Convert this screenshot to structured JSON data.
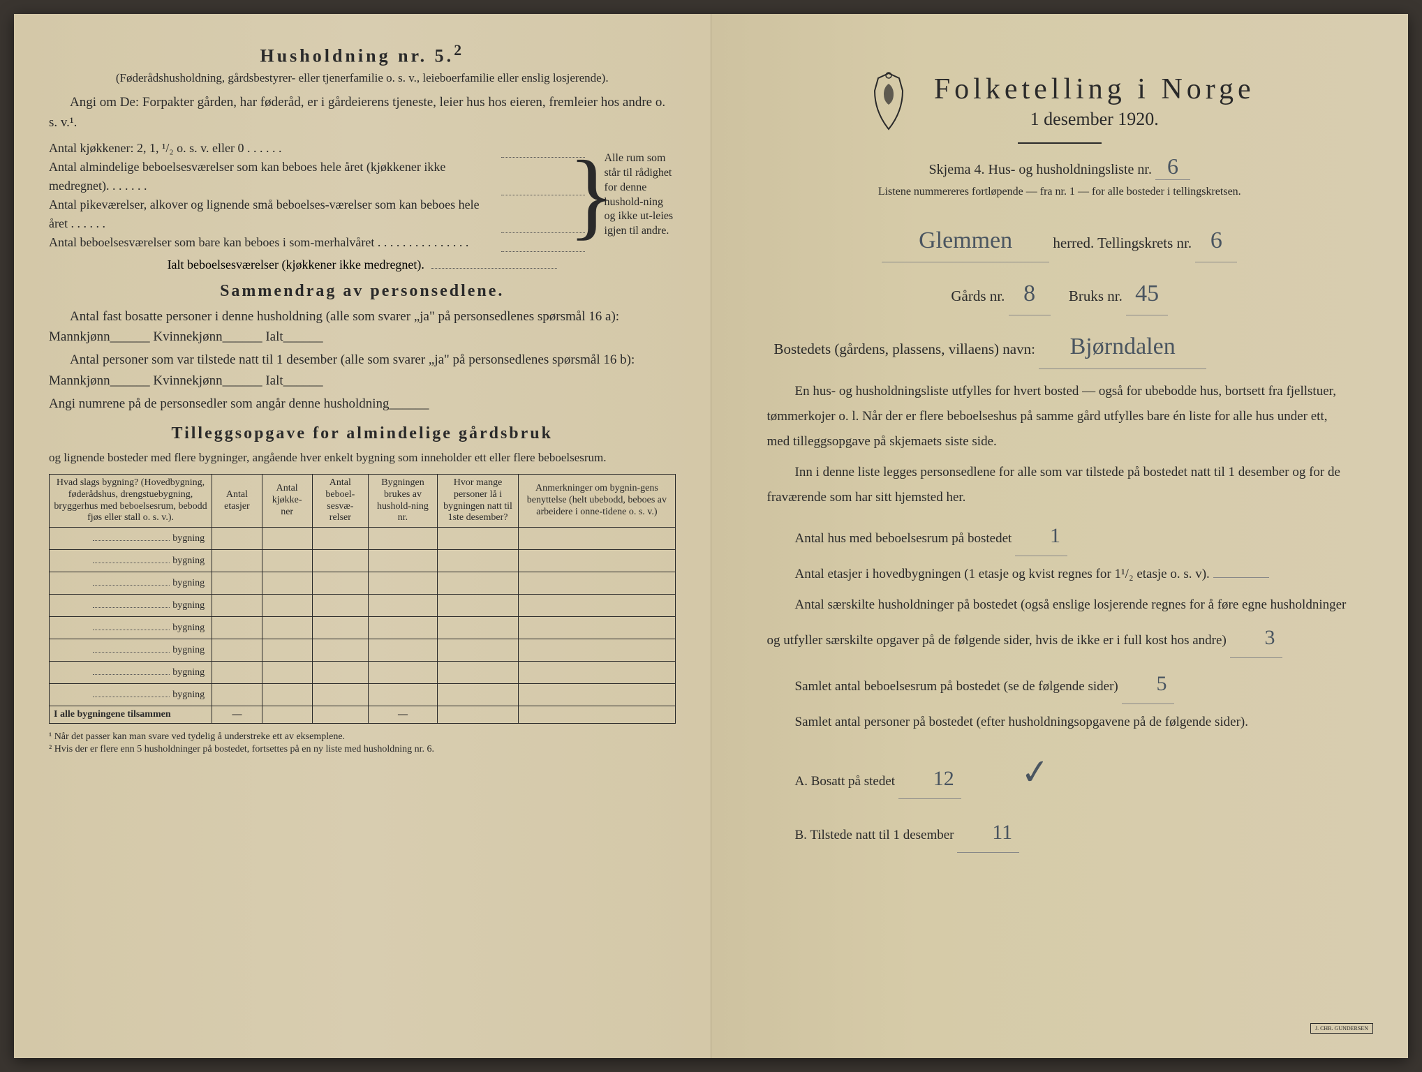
{
  "left": {
    "title": "Husholdning nr. 5.",
    "title_sup": "2",
    "subtitle": "(Føderådshusholdning, gårdsbestyrer- eller tjenerfamilie o. s. v., leieboerfamilie eller enslig losjerende).",
    "angi_line": "Angi om De: Forpakter gården, har føderåd, er i gårdeierens tjeneste, leier hus hos eieren, fremleier hos andre o. s. v.¹.",
    "kitchen_line": "Antal kjøkkener: 2, 1, ¹/₂ o. s. v. eller 0 . . . . . .",
    "brace_rows": [
      "Antal almindelige beboelsesværelser som kan beboes hele året (kjøkkener ikke medregnet). . . . . . .",
      "Antal pikeværelser, alkover og lignende små beboelses-værelser som kan beboes hele året . . . . . .",
      "Antal beboelsesværelser som bare kan beboes i som-merhalvåret . . . . . . . . . . . . . . ."
    ],
    "brace_right": "Alle rum som står til rådighet for denne hushold-ning og ikke ut-leies igjen til andre.",
    "ialt": "Ialt beboelsesværelser (kjøkkener ikke medregnet).",
    "sammendrag_title": "Sammendrag av personsedlene.",
    "sammendrag_p1": "Antal fast bosatte personer i denne husholdning (alle som svarer „ja\" på personsedlenes spørsmål 16 a): Mannkjønn______ Kvinnekjønn______ Ialt______",
    "sammendrag_p2": "Antal personer som var tilstede natt til 1 desember (alle som svarer „ja\" på personsedlenes spørsmål 16 b): Mannkjønn______ Kvinnekjønn______ Ialt______",
    "sammendrag_p3": "Angi numrene på de personsedler som angår denne husholdning______",
    "tillegg_title": "Tilleggsopgave for almindelige gårdsbruk",
    "tillegg_sub": "og lignende bosteder med flere bygninger, angående hver enkelt bygning som inneholder ett eller flere beboelsesrum.",
    "table": {
      "headers": [
        "Hvad slags bygning?\n(Hovedbygning, føderådshus, drengstuebygning, bryggerhus med beboelsesrum, bebodd fjøs eller stall o. s. v.).",
        "Antal etasjer",
        "Antal kjøkke-ner",
        "Antal beboel-sesvæ-relser",
        "Bygningen brukes av hushold-ning nr.",
        "Hvor mange personer lå i bygningen natt til 1ste desember?",
        "Anmerkninger om bygnin-gens benyttelse (helt ubebodd, beboes av arbeidere i onne-tidene o. s. v.)"
      ],
      "row_suffix": "bygning",
      "row_count": 8,
      "total_label": "I alle bygningene tilsammen",
      "dash": "—"
    },
    "footnote1": "¹ Når det passer kan man svare ved tydelig å understreke ett av eksemplene.",
    "footnote2": "² Hvis der er flere enn 5 husholdninger på bostedet, fortsettes på en ny liste med husholdning nr. 6."
  },
  "right": {
    "main_title": "Folketelling i Norge",
    "date": "1 desember 1920.",
    "skjema_prefix": "Skjema 4.  Hus- og husholdningsliste nr.",
    "skjema_nr": "6",
    "instr": "Listene nummereres fortløpende — fra nr. 1 — for alle bosteder i tellingskretsen.",
    "herred_value": "Glemmen",
    "herred_label": "herred.   Tellingskrets nr.",
    "tellingskrets_nr": "6",
    "gards_label": "Gårds nr.",
    "gards_nr": "8",
    "bruks_label": "Bruks nr.",
    "bruks_nr": "45",
    "bosted_label": "Bostedets (gårdens, plassens, villaens) navn:",
    "bosted_value": "Bjørndalen",
    "para1": "En hus- og husholdningsliste utfylles for hvert bosted — også for ubebodde hus, bortsett fra fjellstuer, tømmerkojer o. l. Når der er flere beboelseshus på samme gård utfylles bare én liste for alle hus under ett, med tilleggsopgave på skjemaets siste side.",
    "para2": "Inn i denne liste legges personsedlene for alle som var tilstede på bostedet natt til 1 desember og for de fraværende som har sitt hjemsted her.",
    "antal_hus_label": "Antal hus med beboelsesrum på bostedet",
    "antal_hus_value": "1",
    "etasjer_label": "Antal etasjer i hovedbygningen (1 etasje og kvist regnes for 1¹/₂ etasje o. s. v).",
    "hushold_label": "Antal særskilte husholdninger på bostedet (også enslige losjerende regnes for å føre egne husholdninger og utfyller særskilte opgaver på de følgende sider, hvis de ikke er i full kost hos andre)",
    "hushold_value": "3",
    "samlet_rum_label": "Samlet antal beboelsesrum på bostedet (se de følgende sider)",
    "samlet_rum_value": "5",
    "samlet_pers_label": "Samlet antal personer på bostedet (efter husholdningsopgavene på de følgende sider).",
    "bosatt_label": "A.  Bosatt på stedet",
    "bosatt_value": "12",
    "tilstede_label": "B.  Tilstede natt til 1 desember",
    "tilstede_value": "11",
    "check": "✓",
    "stamp": "J. CHR. GUNDERSEN"
  }
}
